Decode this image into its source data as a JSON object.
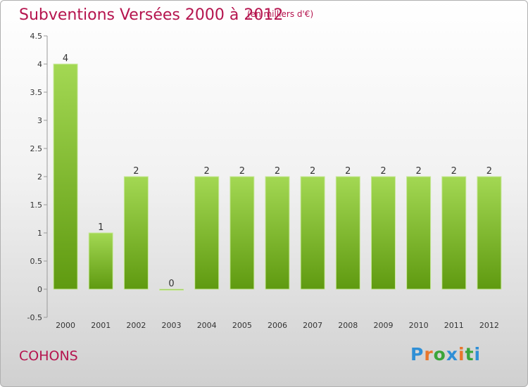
{
  "header": {
    "title": "Subventions Versées 2000 à 2012",
    "unit": "(en milliers d'€)"
  },
  "footer": {
    "commune": "COHONS",
    "logo_text": "Proxiti"
  },
  "colors": {
    "title": "#b5144e",
    "bar_top": "#9fd44f",
    "bar_bottom": "#5f9a10"
  },
  "chart_data": {
    "type": "bar",
    "title": "Subventions Versées 2000 à 2012",
    "xlabel": "",
    "ylabel": "",
    "categories": [
      "2000",
      "2001",
      "2002",
      "2003",
      "2004",
      "2005",
      "2006",
      "2007",
      "2008",
      "2009",
      "2010",
      "2011",
      "2012"
    ],
    "values": [
      4,
      1,
      2,
      0,
      2,
      2,
      2,
      2,
      2,
      2,
      2,
      2,
      2
    ],
    "ylim": [
      -0.5,
      4.5
    ],
    "yticks": [
      "-0.5",
      "0",
      "0.5",
      "1",
      "1.5",
      "2",
      "2.5",
      "3",
      "3.5",
      "4",
      "4.5"
    ],
    "grid": false,
    "legend": "none"
  }
}
